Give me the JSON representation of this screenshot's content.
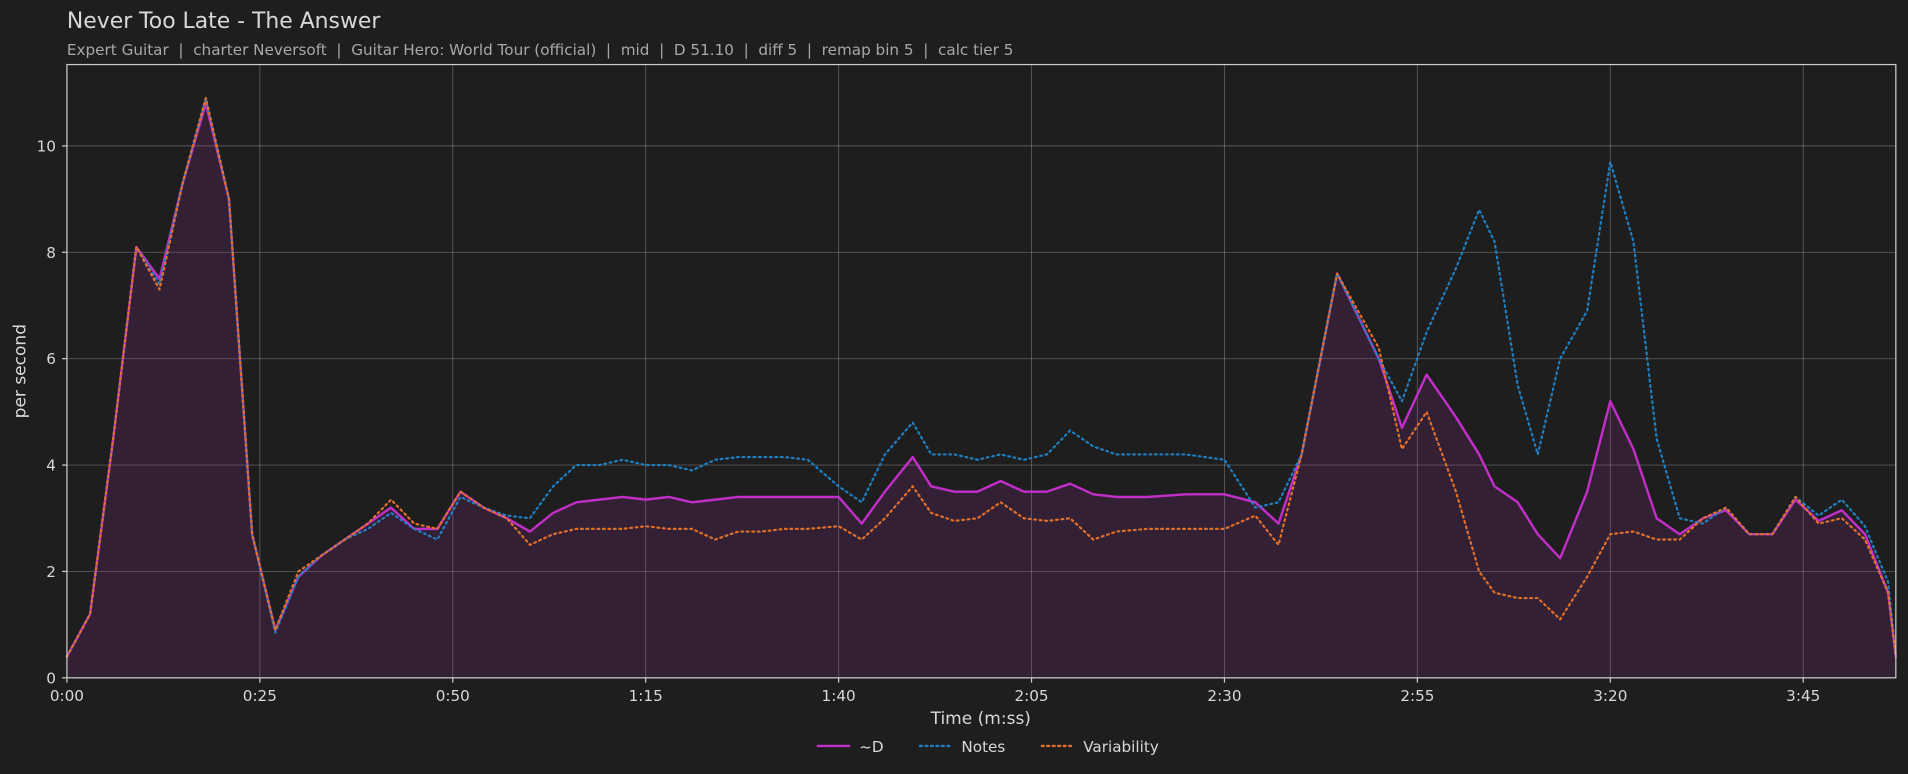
{
  "chart_data": {
    "type": "line",
    "title": "Never Too Late - The Answer",
    "subtitle": "Expert Guitar  |  charter Neversoft  |  Guitar Hero: World Tour (official)  |  mid  |  D 51.10  |  diff 5  |  remap bin 5  |  calc tier 5",
    "x_label": "Time (m:ss)",
    "y_label": "per second",
    "grid": true,
    "legend": "bottom",
    "xlim": [
      0,
      237
    ],
    "ylim": [
      0,
      11.53
    ],
    "xticks": [
      {
        "value": 0,
        "label": "0:00"
      },
      {
        "value": 25,
        "label": "0:25"
      },
      {
        "value": 50,
        "label": "0:50"
      },
      {
        "value": 75,
        "label": "1:15"
      },
      {
        "value": 100,
        "label": "1:40"
      },
      {
        "value": 125,
        "label": "2:05"
      },
      {
        "value": 150,
        "label": "2:30"
      },
      {
        "value": 175,
        "label": "2:55"
      },
      {
        "value": 200,
        "label": "3:20"
      },
      {
        "value": 225,
        "label": "3:45"
      }
    ],
    "yticks": [
      0,
      2,
      4,
      6,
      8,
      10
    ],
    "x": [
      0,
      3,
      6,
      9,
      12,
      15,
      18,
      21,
      24,
      27,
      30,
      33,
      36,
      39,
      42,
      45,
      48,
      51,
      54,
      57,
      60,
      63,
      66,
      69,
      72,
      75,
      78,
      81,
      84,
      87,
      90,
      93,
      96,
      100,
      103,
      106,
      109.6,
      112,
      115,
      118,
      121,
      124,
      127,
      130,
      133,
      136,
      140,
      145,
      150,
      154,
      157,
      160,
      164.6,
      170,
      173,
      176.2,
      180,
      183,
      185,
      188,
      190.6,
      193.5,
      197,
      200,
      203,
      206,
      209,
      212,
      215,
      218,
      221,
      224,
      227,
      230,
      233,
      236,
      237
    ],
    "series": [
      {
        "name": "~D",
        "color": "#c22fc8",
        "linestyle": "solid",
        "fill_under": true,
        "values": [
          0.4,
          1.2,
          4.5,
          8.1,
          7.5,
          9.3,
          10.8,
          9.0,
          2.7,
          0.9,
          1.9,
          2.3,
          2.6,
          2.9,
          3.2,
          2.8,
          2.8,
          3.5,
          3.2,
          3.0,
          2.75,
          3.1,
          3.3,
          3.35,
          3.4,
          3.35,
          3.4,
          3.3,
          3.35,
          3.4,
          3.4,
          3.4,
          3.4,
          3.4,
          2.9,
          3.5,
          4.15,
          3.6,
          3.5,
          3.5,
          3.7,
          3.5,
          3.5,
          3.65,
          3.45,
          3.4,
          3.4,
          3.45,
          3.45,
          3.3,
          2.9,
          4.2,
          7.6,
          6.0,
          4.7,
          5.7,
          4.9,
          4.2,
          3.6,
          3.3,
          2.7,
          2.25,
          3.5,
          5.2,
          4.3,
          3.0,
          2.7,
          3.0,
          3.15,
          2.7,
          2.7,
          3.35,
          2.95,
          3.15,
          2.7,
          1.6,
          0.4
        ]
      },
      {
        "name": "Notes",
        "color": "#1f7fc0",
        "linestyle": "dotted",
        "fill_under": false,
        "values": [
          0.4,
          1.2,
          4.5,
          8.1,
          7.4,
          9.3,
          10.9,
          9.0,
          2.7,
          0.85,
          1.9,
          2.3,
          2.6,
          2.8,
          3.1,
          2.8,
          2.6,
          3.4,
          3.2,
          3.05,
          3.0,
          3.6,
          4.0,
          4.0,
          4.1,
          4.0,
          4.0,
          3.9,
          4.1,
          4.15,
          4.15,
          4.15,
          4.1,
          3.6,
          3.3,
          4.2,
          4.8,
          4.2,
          4.2,
          4.1,
          4.2,
          4.1,
          4.2,
          4.65,
          4.35,
          4.2,
          4.2,
          4.2,
          4.1,
          3.2,
          3.3,
          4.2,
          7.6,
          6.0,
          5.2,
          6.5,
          7.7,
          8.8,
          8.2,
          5.5,
          4.2,
          6.0,
          6.9,
          9.7,
          8.2,
          4.5,
          3.0,
          2.9,
          3.2,
          2.7,
          2.7,
          3.4,
          3.05,
          3.35,
          2.85,
          1.8,
          0.4
        ]
      },
      {
        "name": "Variability",
        "color": "#e0702a",
        "linestyle": "dotted",
        "fill_under": false,
        "values": [
          0.4,
          1.2,
          4.5,
          8.1,
          7.3,
          9.3,
          10.9,
          9.0,
          2.7,
          0.9,
          2.0,
          2.3,
          2.6,
          2.9,
          3.35,
          2.9,
          2.8,
          3.5,
          3.2,
          3.0,
          2.5,
          2.7,
          2.8,
          2.8,
          2.8,
          2.85,
          2.8,
          2.8,
          2.6,
          2.75,
          2.75,
          2.8,
          2.8,
          2.85,
          2.6,
          3.0,
          3.6,
          3.1,
          2.95,
          3.0,
          3.3,
          3.0,
          2.95,
          3.0,
          2.6,
          2.75,
          2.8,
          2.8,
          2.8,
          3.05,
          2.5,
          4.2,
          7.6,
          6.2,
          4.3,
          5.0,
          3.5,
          2.0,
          1.6,
          1.5,
          1.5,
          1.1,
          1.9,
          2.7,
          2.75,
          2.6,
          2.6,
          3.0,
          3.2,
          2.7,
          2.7,
          3.4,
          2.9,
          3.0,
          2.6,
          1.6,
          0.4
        ]
      }
    ]
  }
}
